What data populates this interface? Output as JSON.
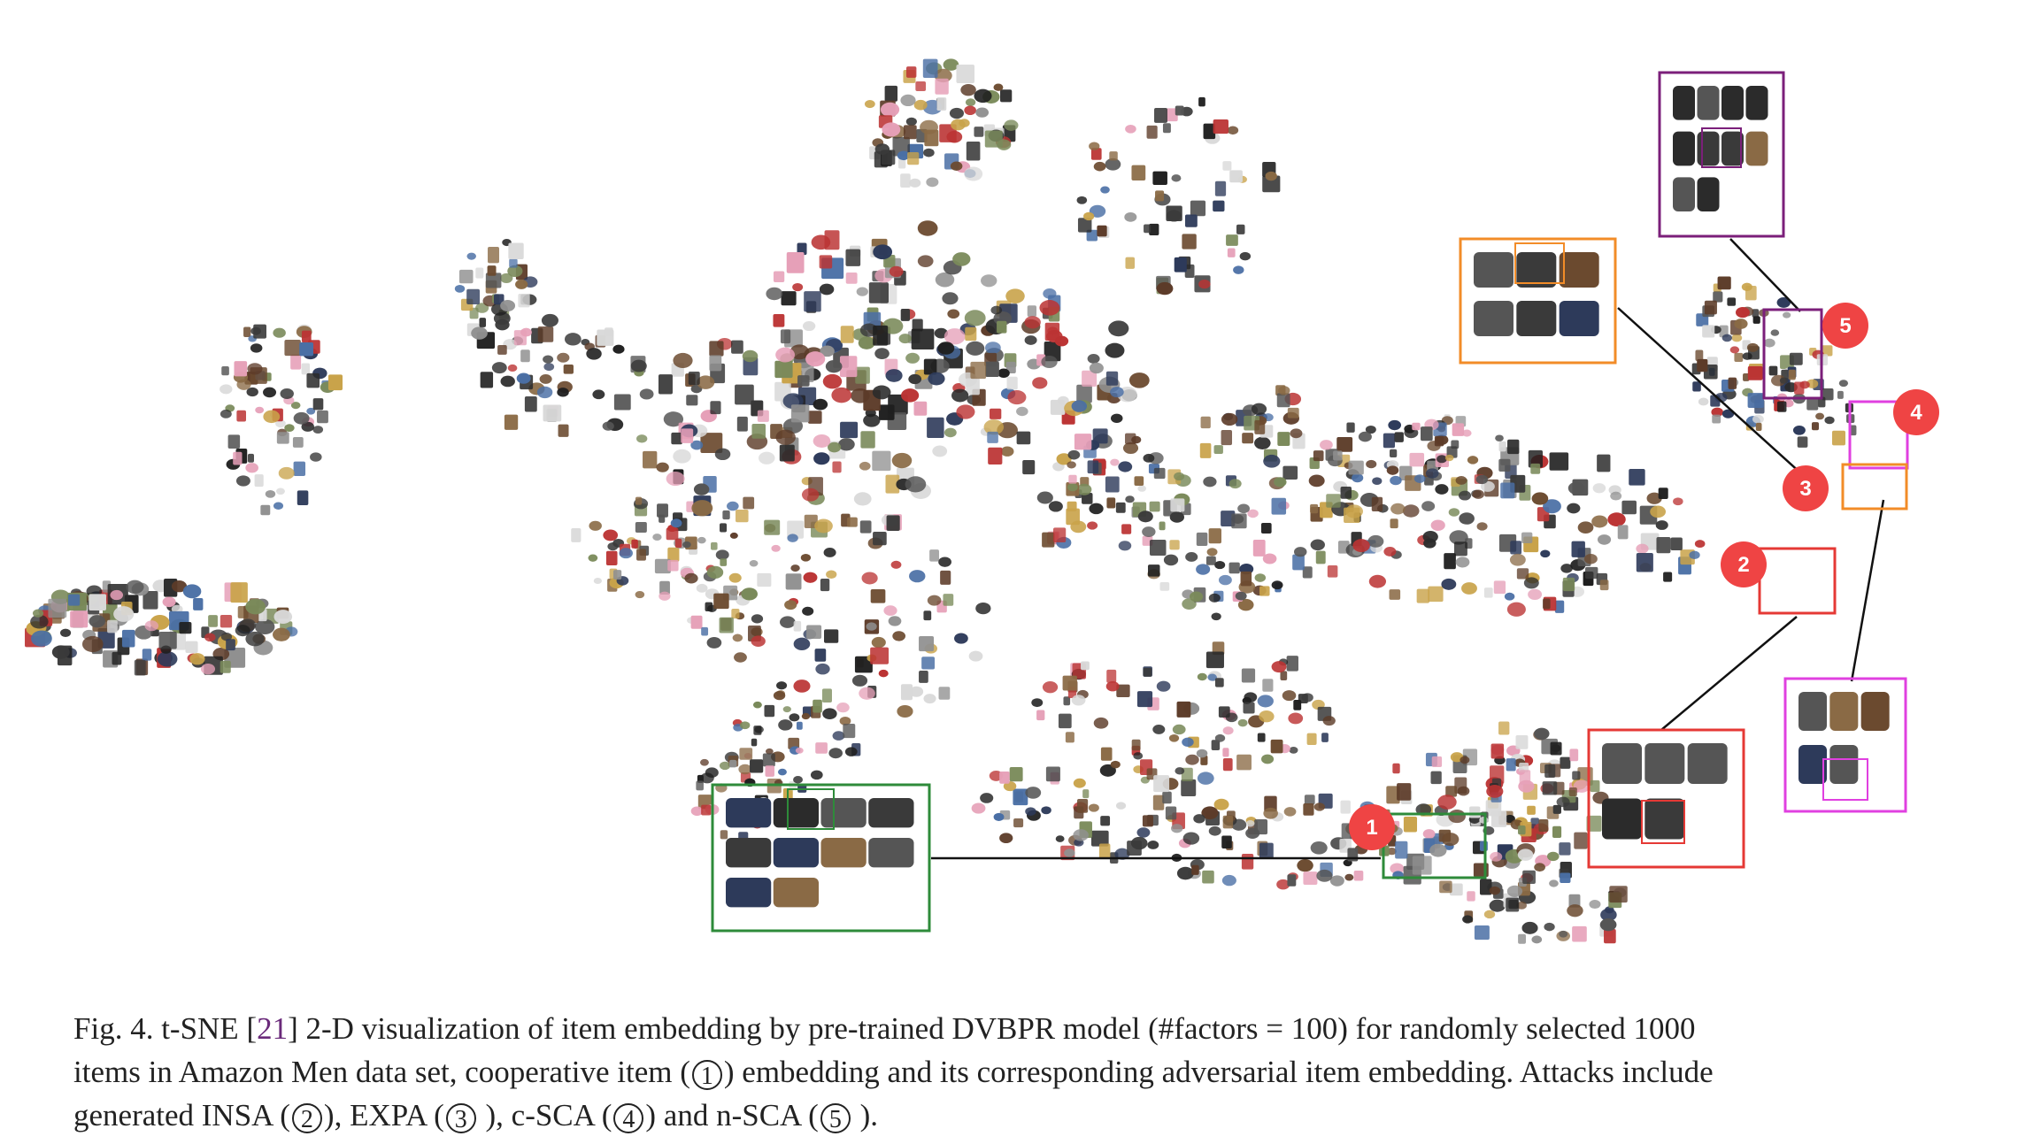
{
  "figure": {
    "markers": [
      {
        "label": "1",
        "color": "#ef4444"
      },
      {
        "label": "2",
        "color": "#ef4444"
      },
      {
        "label": "3",
        "color": "#ef4444"
      },
      {
        "label": "4",
        "color": "#ef4444"
      },
      {
        "label": "5",
        "color": "#ef4444"
      }
    ],
    "box_colors": {
      "cooperative": "#2e8b3a",
      "insa": "#e53935",
      "expa": "#f28c28",
      "csca": "#e040e0",
      "nsca": "#7b1f7a"
    }
  },
  "caption": {
    "prefix": "Fig. 4.  t-SNE [",
    "ref": "21",
    "line1_rest": "] 2-D visualization of item embedding by pre-trained DVBPR model (#factors = 100) for randomly selected 1000",
    "line2_a": "items in Amazon Men data set, cooperative item (",
    "c1": "1",
    "line2_b": ") embedding and its corresponding adversarial item embedding. Attacks include",
    "line3_a": "generated INSA (",
    "c2": "2",
    "line3_b": "), EXPA (",
    "c3": "3",
    "line3_c": " ), c-SCA (",
    "c4": "4",
    "line3_d": ") and n-SCA (",
    "c5": "5",
    "line3_e": " )."
  }
}
